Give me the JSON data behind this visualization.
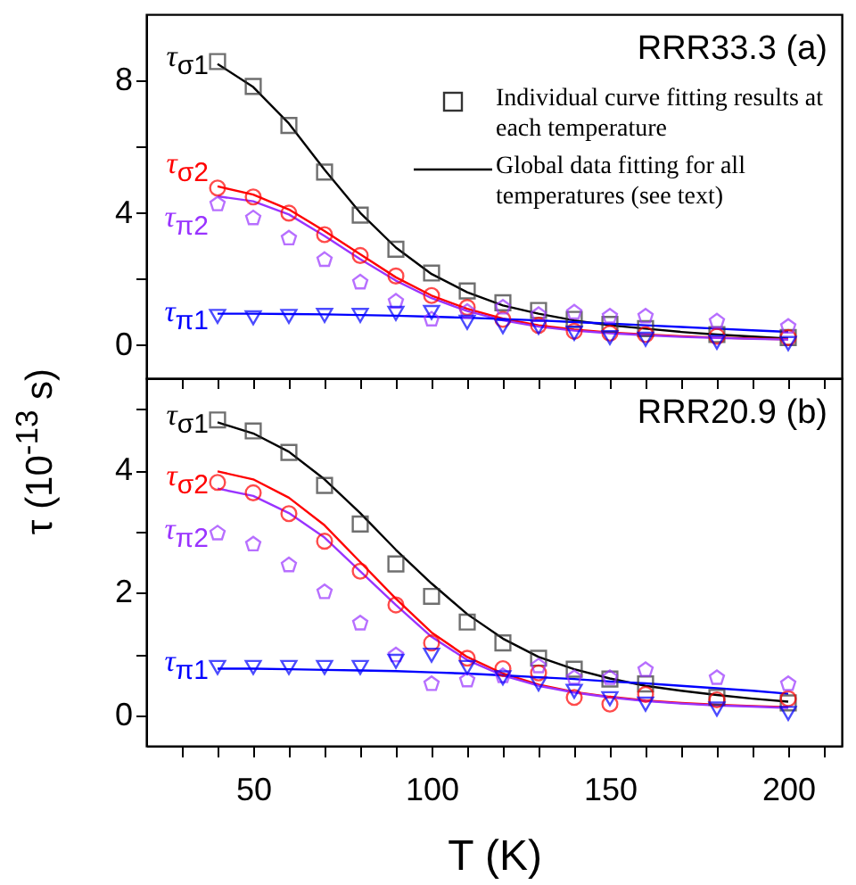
{
  "chart_data": [
    {
      "type": "scatter",
      "ylabel": "τ (10$^{-13}$ s)",
      "x": [
        40,
        50,
        60,
        70,
        80,
        90,
        100,
        110,
        120,
        130,
        140,
        150,
        160,
        180,
        200
      ],
      "xlim": [
        20,
        215
      ],
      "ylim": [
        -1,
        10
      ],
      "xticks": [
        {
          "value": 30,
          "label": null
        },
        {
          "value": 40,
          "label": null
        },
        {
          "value": 50,
          "label": null
        },
        {
          "value": 60,
          "label": null
        },
        {
          "value": 70,
          "label": null
        },
        {
          "value": 80,
          "label": null
        },
        {
          "value": 90,
          "label": null
        },
        {
          "value": 100,
          "label": null
        },
        {
          "value": 110,
          "label": null
        },
        {
          "value": 120,
          "label": null
        },
        {
          "value": 130,
          "label": null
        },
        {
          "value": 140,
          "label": null
        },
        {
          "value": 150,
          "label": null
        },
        {
          "value": 160,
          "label": null
        },
        {
          "value": 170,
          "label": null
        },
        {
          "value": 180,
          "label": null
        },
        {
          "value": 190,
          "label": null
        },
        {
          "value": 200,
          "label": null
        },
        {
          "value": 210,
          "label": null
        }
      ],
      "yticks": [
        0,
        {
          "value": 2,
          "label": null
        },
        4,
        {
          "value": 6,
          "label": null
        },
        8
      ],
      "tick_labels": "y",
      "grid": false,
      "legend": "top left",
      "annotations": [
        "RRR33.3  (a)",
        "Individual curve fitting results at each temperature",
        "Global data fitting for all temperatures (see text)"
      ],
      "series": [
        {
          "type": "line",
          "color": "#000000",
          "x": [
            40,
            50,
            60,
            70,
            80,
            90,
            100,
            110,
            120,
            130,
            140,
            150,
            160,
            170,
            180,
            190,
            200
          ],
          "values": [
            8.5,
            7.8,
            6.7,
            5.3,
            4.0,
            2.95,
            2.15,
            1.6,
            1.2,
            0.95,
            0.75,
            0.6,
            0.5,
            0.4,
            0.32,
            0.26,
            0.2
          ]
        },
        {
          "type": "line",
          "color": "#ff0000",
          "x": [
            40,
            50,
            60,
            70,
            80,
            90,
            100,
            110,
            120,
            130,
            140,
            150,
            160,
            170,
            180,
            190,
            200
          ],
          "values": [
            4.8,
            4.55,
            4.1,
            3.45,
            2.75,
            2.05,
            1.5,
            1.1,
            0.8,
            0.6,
            0.47,
            0.38,
            0.32,
            0.27,
            0.23,
            0.2,
            0.18
          ]
        },
        {
          "type": "line",
          "color": "#9933ff",
          "x": [
            40,
            50,
            60,
            70,
            80,
            90,
            100,
            110,
            120,
            130,
            140,
            150,
            160,
            170,
            180,
            190,
            200
          ],
          "values": [
            4.5,
            4.35,
            3.95,
            3.3,
            2.6,
            1.95,
            1.42,
            1.03,
            0.75,
            0.56,
            0.44,
            0.36,
            0.3,
            0.25,
            0.22,
            0.19,
            0.17
          ]
        },
        {
          "type": "line",
          "color": "#0000ff",
          "x": [
            40,
            50,
            60,
            70,
            80,
            90,
            100,
            110,
            120,
            130,
            140,
            150,
            160,
            170,
            180,
            190,
            200
          ],
          "values": [
            0.95,
            0.95,
            0.94,
            0.93,
            0.91,
            0.89,
            0.86,
            0.83,
            0.79,
            0.75,
            0.7,
            0.65,
            0.6,
            0.55,
            0.5,
            0.45,
            0.4
          ]
        },
        {
          "type": "scatter",
          "name": "τ$_{σ1}$",
          "color": "#333333",
          "marker": "square",
          "values": [
            8.57,
            7.82,
            6.64,
            5.23,
            3.93,
            2.9,
            2.18,
            1.64,
            1.28,
            1.05,
            0.78,
            0.63,
            0.5,
            0.32,
            0.23
          ]
        },
        {
          "type": "scatter",
          "name": "τ$_{σ2}$",
          "color": "#ff0000",
          "marker": "circle",
          "values": [
            4.75,
            4.48,
            3.99,
            3.34,
            2.71,
            2.09,
            1.5,
            1.14,
            0.78,
            0.6,
            0.42,
            0.36,
            0.32,
            0.27,
            0.23
          ]
        },
        {
          "type": "scatter",
          "name": "τ$_{π2}$",
          "color": "#9933ff",
          "values": [
            4.26,
            3.84,
            3.23,
            2.58,
            1.9,
            1.32,
            0.78,
            1.01,
            1.14,
            0.92,
            0.99,
            0.87,
            0.87,
            0.72,
            0.56
          ]
        },
        {
          "type": "scatter",
          "name": "τ$_{π1}$",
          "color": "#0000ff",
          "marker": "triangle-down",
          "values": [
            0.87,
            0.83,
            0.87,
            0.9,
            0.9,
            0.96,
            0.99,
            0.69,
            0.56,
            0.54,
            0.36,
            0.23,
            0.18,
            0.09,
            0.05
          ]
        }
      ]
    },
    {
      "type": "scatter",
      "xlabel": "T (K)",
      "x": [
        40,
        50,
        60,
        70,
        80,
        90,
        100,
        110,
        120,
        130,
        140,
        150,
        160,
        180,
        200
      ],
      "xlim": [
        20,
        215
      ],
      "ylim": [
        -0.5,
        5.5
      ],
      "xticks": [
        {
          "value": 30,
          "label": null
        },
        {
          "value": 40,
          "label": null
        },
        50,
        {
          "value": 60,
          "label": null
        },
        {
          "value": 70,
          "label": null
        },
        {
          "value": 80,
          "label": null
        },
        {
          "value": 90,
          "label": null
        },
        100,
        {
          "value": 110,
          "label": null
        },
        {
          "value": 120,
          "label": null
        },
        {
          "value": 130,
          "label": null
        },
        {
          "value": 140,
          "label": null
        },
        150,
        {
          "value": 160,
          "label": null
        },
        {
          "value": 170,
          "label": null
        },
        {
          "value": 180,
          "label": null
        },
        {
          "value": 190,
          "label": null
        },
        200,
        {
          "value": 210,
          "label": null
        }
      ],
      "yticks": [
        0,
        {
          "value": 1,
          "label": null
        },
        2,
        {
          "value": 3,
          "label": null
        },
        4,
        {
          "value": 5,
          "label": null
        }
      ],
      "grid": false,
      "annotations": [
        "RRR20.9  (b)"
      ],
      "series": [
        {
          "type": "line",
          "color": "#000000",
          "x": [
            40,
            50,
            60,
            70,
            80,
            90,
            100,
            110,
            120,
            130,
            140,
            150,
            160,
            170,
            180,
            190,
            200
          ],
          "values": [
            4.78,
            4.6,
            4.3,
            3.85,
            3.3,
            2.7,
            2.15,
            1.65,
            1.25,
            0.95,
            0.75,
            0.6,
            0.48,
            0.4,
            0.33,
            0.27,
            0.22
          ]
        },
        {
          "type": "line",
          "color": "#ff0000",
          "x": [
            40,
            50,
            60,
            70,
            80,
            90,
            100,
            110,
            120,
            130,
            140,
            150,
            160,
            170,
            180,
            190,
            200
          ],
          "values": [
            3.98,
            3.85,
            3.55,
            3.1,
            2.5,
            1.9,
            1.35,
            0.95,
            0.68,
            0.5,
            0.38,
            0.3,
            0.24,
            0.2,
            0.17,
            0.15,
            0.13
          ]
        },
        {
          "type": "line",
          "color": "#9933ff",
          "x": [
            40,
            50,
            60,
            70,
            80,
            90,
            100,
            110,
            120,
            130,
            140,
            150,
            160,
            170,
            180,
            190,
            200
          ],
          "values": [
            3.7,
            3.58,
            3.3,
            2.9,
            2.35,
            1.8,
            1.28,
            0.9,
            0.65,
            0.48,
            0.37,
            0.29,
            0.23,
            0.19,
            0.16,
            0.14,
            0.12
          ]
        },
        {
          "type": "line",
          "color": "#0000ff",
          "x": [
            40,
            50,
            60,
            70,
            80,
            90,
            100,
            110,
            120,
            130,
            140,
            150,
            160,
            170,
            180,
            190,
            200
          ],
          "values": [
            0.76,
            0.76,
            0.75,
            0.74,
            0.73,
            0.72,
            0.7,
            0.68,
            0.65,
            0.62,
            0.59,
            0.55,
            0.52,
            0.48,
            0.44,
            0.4,
            0.35
          ]
        },
        {
          "type": "scatter",
          "name": "τ$_{σ1}$",
          "color": "#333333",
          "marker": "square",
          "values": [
            4.82,
            4.64,
            4.29,
            3.75,
            3.12,
            2.47,
            1.94,
            1.52,
            1.18,
            0.93,
            0.75,
            0.59,
            0.51,
            0.29,
            0.2
          ]
        },
        {
          "type": "scatter",
          "name": "τ$_{σ2}$",
          "color": "#ff0000",
          "marker": "circle",
          "values": [
            3.8,
            3.63,
            3.29,
            2.84,
            2.35,
            1.8,
            1.18,
            0.93,
            0.76,
            0.69,
            0.29,
            0.18,
            0.34,
            0.25,
            0.27
          ]
        },
        {
          "type": "scatter",
          "name": "τ$_{π2}$",
          "color": "#9933ff",
          "values": [
            2.97,
            2.79,
            2.45,
            2.01,
            1.5,
            0.98,
            0.51,
            0.57,
            0.64,
            0.8,
            0.61,
            0.61,
            0.74,
            0.61,
            0.51
          ]
        },
        {
          "type": "scatter",
          "name": "τ$_{π1}$",
          "color": "#0000ff",
          "marker": "triangle-down",
          "values": [
            0.78,
            0.78,
            0.78,
            0.78,
            0.78,
            0.88,
            0.98,
            0.78,
            0.61,
            0.51,
            0.39,
            0.27,
            0.18,
            0.1,
            0.03
          ]
        }
      ]
    }
  ]
}
